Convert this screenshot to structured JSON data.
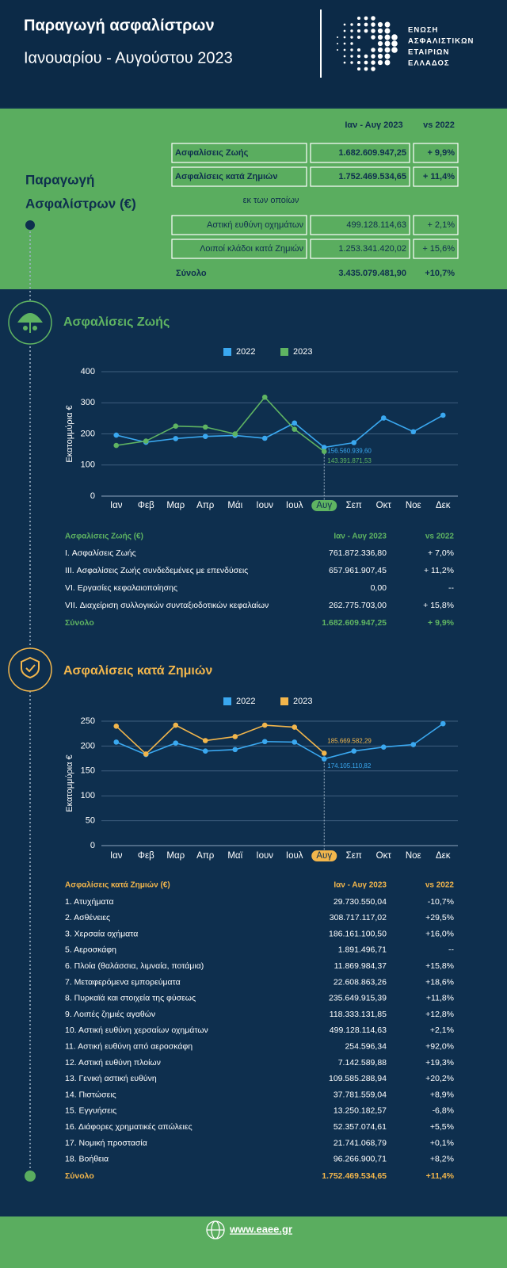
{
  "header": {
    "title": "Παραγωγή ασφαλίστρων",
    "subtitle": "Ιανουαρίου - Αυγούστου 2023",
    "logo": [
      "ΕΝΩΣΗ",
      "ΑΣΦΑΛΙΣΤΙΚΩΝ",
      "ΕΤΑΙΡΙΩΝ",
      "ΕΛΛΑΔΟΣ"
    ]
  },
  "summary": {
    "left_label": [
      "Παραγωγή",
      "Ασφαλίστρων (€)"
    ],
    "columns": [
      "Ιαν - Αυγ 2023",
      "vs 2022"
    ],
    "rows": [
      [
        "Ασφαλίσεις Ζωής",
        "1.682.609.947,25",
        "+ 9,9%"
      ],
      [
        "Ασφαλίσεις κατά Ζημιών",
        "1.752.469.534,65",
        "+ 11,4%"
      ]
    ],
    "note": "εκ των οποίων",
    "sub_rows": [
      [
        "Αστική ευθύνη οχημάτων",
        "499.128.114,63",
        "+ 2,1%"
      ],
      [
        "Λοιποί κλάδοι κατά Ζημιών",
        "1.253.341.420,02",
        "+ 15,6%"
      ]
    ],
    "total": [
      "Σύνολο",
      "3.435.079.481,90",
      "+10,7%"
    ]
  },
  "chart_data": [
    {
      "type": "line",
      "title": "Ασφαλίσεις Ζωής",
      "y_label": "Εκατομμύρια €",
      "categories": [
        "Ιαν",
        "Φεβ",
        "Μαρ",
        "Απρ",
        "Μάι",
        "Ιουν",
        "Ιουλ",
        "Αυγ",
        "Σεπ",
        "Οκτ",
        "Νοε",
        "Δεκ"
      ],
      "series": [
        {
          "name": "2022",
          "color": "#3aa8f0",
          "values": [
            196,
            173,
            185,
            192,
            195,
            186,
            235,
            156.5609396,
            172,
            251,
            207,
            260
          ],
          "value_labels": [
            null,
            null,
            null,
            null,
            null,
            null,
            null,
            "156.560.939,60",
            null,
            null,
            null,
            null
          ]
        },
        {
          "name": "2023",
          "color": "#5fb462",
          "values": [
            163,
            177,
            225,
            222,
            200,
            318,
            215,
            143.39187153,
            null,
            null,
            null,
            null
          ],
          "value_labels": [
            null,
            null,
            null,
            null,
            null,
            null,
            null,
            "143.391.871,53",
            null,
            null,
            null,
            null
          ]
        }
      ],
      "ylim": [
        0,
        400
      ],
      "yticks": [
        0,
        100,
        200,
        300,
        400
      ],
      "grid": true,
      "legend": "top",
      "highlight": 7
    },
    {
      "type": "line",
      "title": "Ασφαλίσεις κατά Ζημιών",
      "y_label": "Εκατομμύρια €",
      "categories": [
        "Ιαν",
        "Φεβ",
        "Μαρ",
        "Απρ",
        "Μαϊ",
        "Ιουν",
        "Ιουλ",
        "Αυγ",
        "Σεπ",
        "Οκτ",
        "Νοε",
        "Δεκ"
      ],
      "series": [
        {
          "name": "2022",
          "color": "#3aa8f0",
          "values": [
            208,
            183,
            206,
            190,
            193,
            209,
            208,
            174.10511082,
            190,
            198,
            203,
            245
          ],
          "value_labels": [
            null,
            null,
            null,
            null,
            null,
            null,
            null,
            "174.105.110,82",
            null,
            null,
            null,
            null
          ]
        },
        {
          "name": "2023",
          "color": "#f2b64c",
          "values": [
            240,
            184,
            242,
            211,
            219,
            242,
            238,
            185.66958229,
            null,
            null,
            null,
            null
          ],
          "value_labels": [
            null,
            null,
            null,
            null,
            null,
            null,
            null,
            "185.669.582,29",
            null,
            null,
            null,
            null
          ]
        }
      ],
      "ylim": [
        0,
        250
      ],
      "yticks": [
        0,
        50,
        100,
        150,
        200,
        250
      ],
      "grid": true,
      "legend": "top",
      "highlight": 7
    }
  ],
  "life_table": {
    "header": [
      "Ασφαλίσεις Ζωής (€)",
      "Ιαν - Αυγ 2023",
      "vs 2022"
    ],
    "rows": [
      [
        "I. Ασφαλίσεις  Ζωής",
        "761.872.336,80",
        "+ 7,0%"
      ],
      [
        "III. Ασφαλίσεις  Ζωής  συνδεδεμένες με επενδύσεις",
        "657.961.907,45",
        "+ 11,2%"
      ],
      [
        "VI. Εργασίες κεφαλαιοποίησης",
        "0,00",
        "--"
      ],
      [
        "VII. Διαχείριση συλλογικών συνταξιοδοτικών κεφαλαίων",
        "262.775.703,00",
        "+ 15,8%"
      ]
    ],
    "total": [
      "Σύνολο",
      "1.682.609.947,25",
      "+ 9,9%"
    ]
  },
  "nonlife_table": {
    "header": [
      "Ασφαλίσεις κατά Ζημιών (€)",
      "Ιαν - Αυγ 2023",
      "vs 2022"
    ],
    "rows": [
      [
        "1. Ατυχήματα",
        "29.730.550,04",
        "-10,7%"
      ],
      [
        "2. Ασθένειες",
        "308.717.117,02",
        "+29,5%"
      ],
      [
        "3. Χερσαία οχήματα",
        "186.161.100,50",
        "+16,0%"
      ],
      [
        "5. Αεροσκάφη",
        "1.891.496,71",
        "--"
      ],
      [
        "6. Πλοία (θαλάσσια, λιμναία, ποτάμια)",
        "11.869.984,37",
        "+15,8%"
      ],
      [
        "7. Μεταφερόμενα εμπορεύματα",
        "22.608.863,26",
        "+18,6%"
      ],
      [
        "8. Πυρκαϊά και στοιχεία της φύσεως",
        "235.649.915,39",
        "+11,8%"
      ],
      [
        "9. Λοιπές ζημιές αγαθών",
        "118.333.131,85",
        "+12,8%"
      ],
      [
        "10. Αστική ευθύνη χερσαίων οχημάτων",
        "499.128.114,63",
        "+2,1%"
      ],
      [
        "11. Αστική ευθύνη από αεροσκάφη",
        "254.596,34",
        "+92,0%"
      ],
      [
        "12. Αστική ευθύνη πλοίων",
        "7.142.589,88",
        "+19,3%"
      ],
      [
        "13. Γενική αστική ευθύνη",
        "109.585.288,94",
        "+20,2%"
      ],
      [
        "14. Πιστώσεις",
        "37.781.559,04",
        "+8,9%"
      ],
      [
        "15. Εγγυήσεις",
        "13.250.182,57",
        "-6,8%"
      ],
      [
        "16. Διάφορες χρηματικές απώλειες",
        "52.357.074,61",
        "+5,5%"
      ],
      [
        "17. Νομική προστασία",
        "21.741.068,79",
        "+0,1%"
      ],
      [
        "18. Βοήθεια",
        "96.266.900,71",
        "+8,2%"
      ]
    ],
    "total": [
      "Σύνολο",
      "1.752.469.534,65",
      "+11,4%"
    ]
  },
  "footer": {
    "url": "www.eaee.gr"
  }
}
